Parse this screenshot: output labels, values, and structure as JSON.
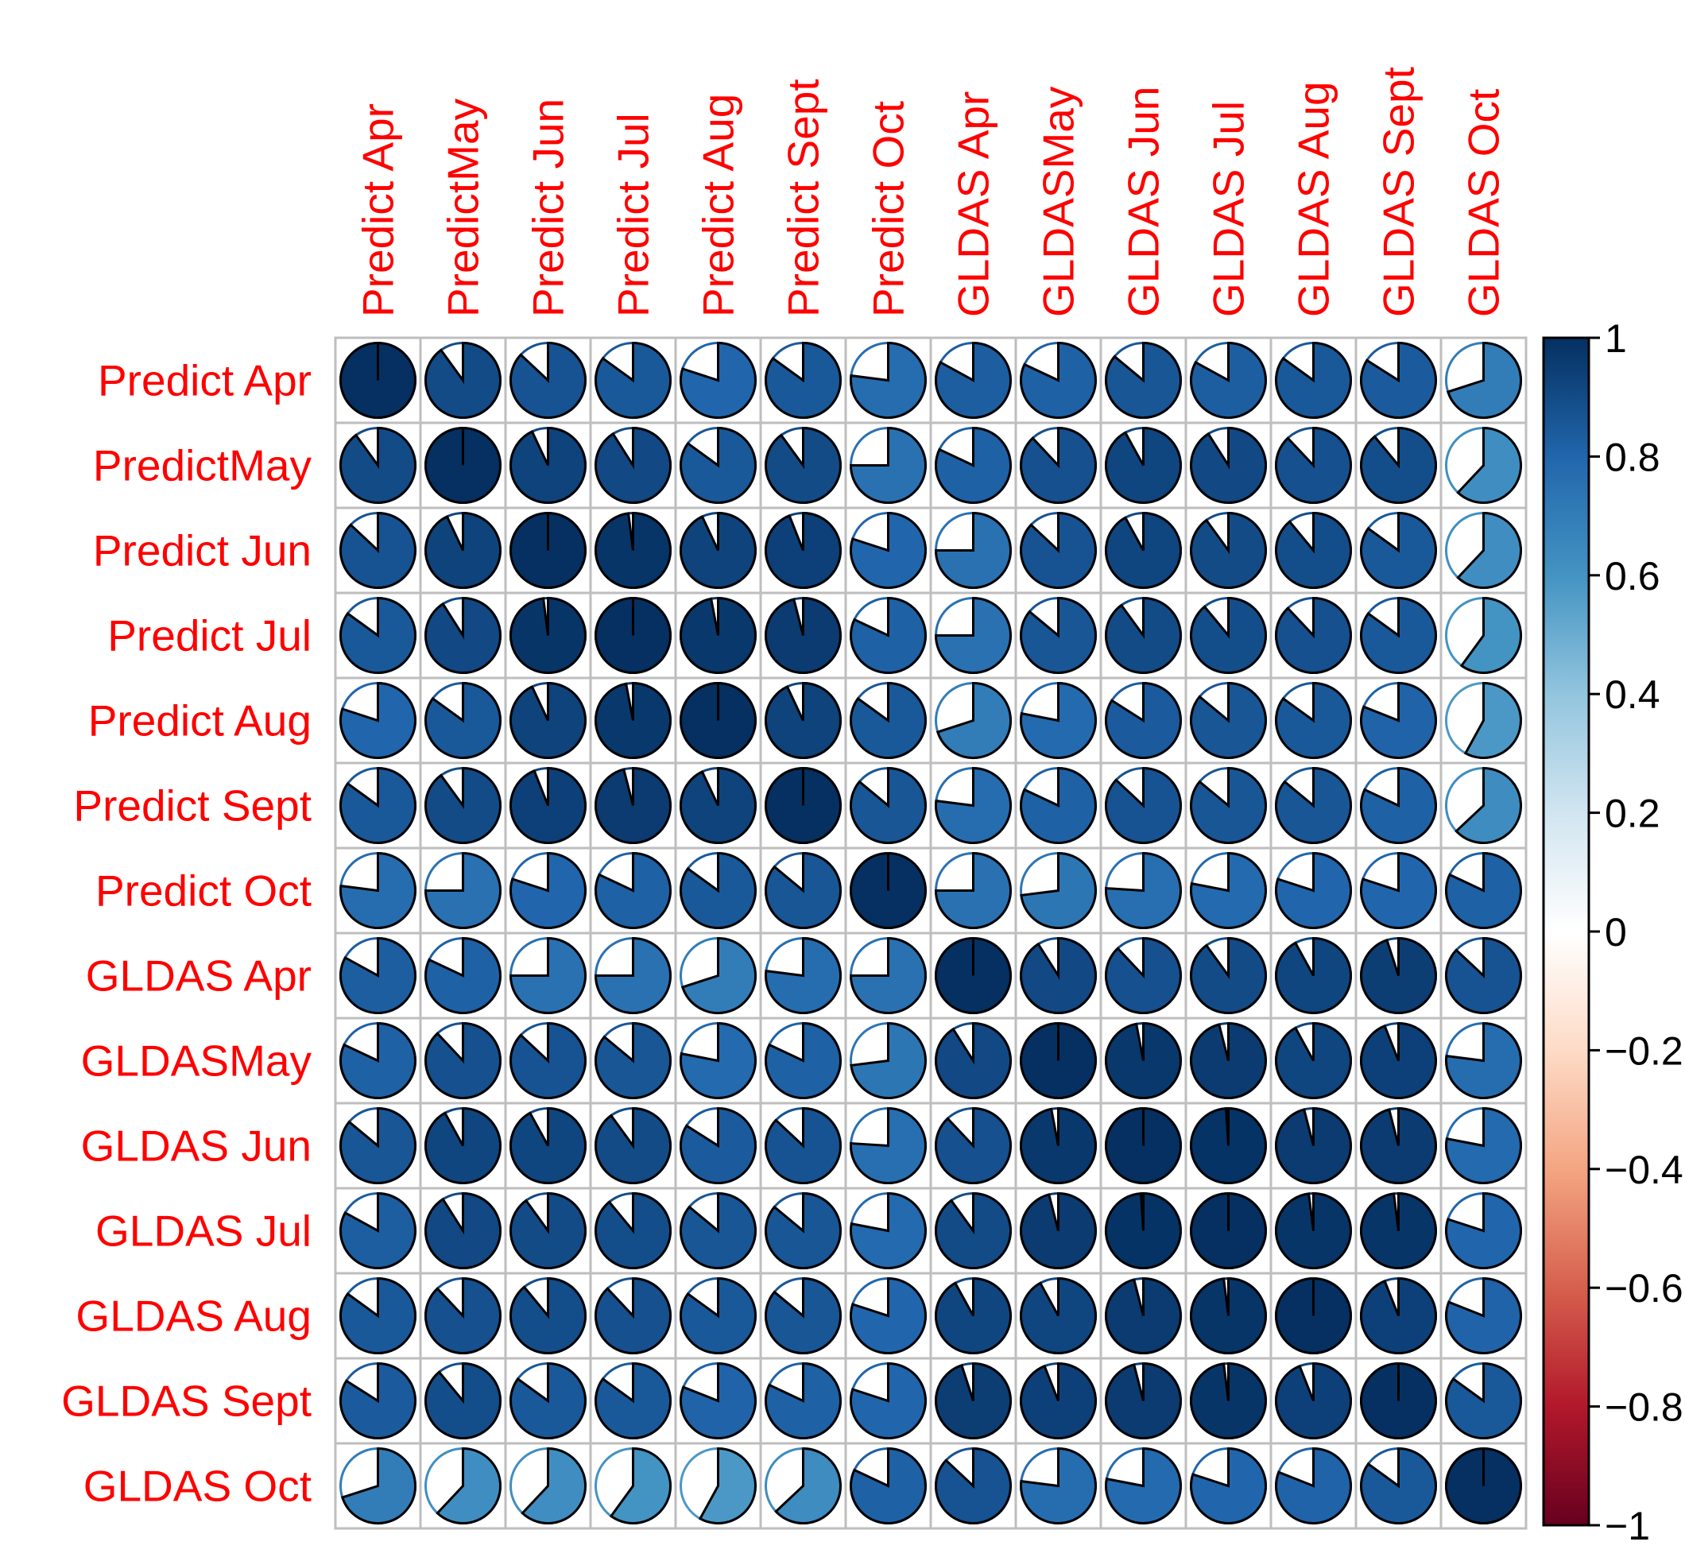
{
  "chart_data": {
    "type": "heatmap",
    "style": "pie",
    "title": "",
    "row_labels": [
      "Predict Apr",
      "PredictMay",
      "Predict Jun",
      "Predict Jul",
      "Predict Aug",
      "Predict Sept",
      "Predict Oct",
      "GLDAS Apr",
      "GLDASMay",
      "GLDAS Jun",
      "GLDAS Jul",
      "GLDAS Aug",
      "GLDAS Sept",
      "GLDAS Oct"
    ],
    "col_labels": [
      "Predict Apr",
      "PredictMay",
      "Predict Jun",
      "Predict Jul",
      "Predict Aug",
      "Predict Sept",
      "Predict Oct",
      "GLDAS Apr",
      "GLDASMay",
      "GLDAS Jun",
      "GLDAS Jul",
      "GLDAS Aug",
      "GLDAS Sept",
      "GLDAS Oct"
    ],
    "values": [
      [
        1.0,
        0.9,
        0.87,
        0.85,
        0.8,
        0.85,
        0.77,
        0.83,
        0.82,
        0.86,
        0.83,
        0.85,
        0.84,
        0.7
      ],
      [
        0.9,
        1.0,
        0.93,
        0.91,
        0.85,
        0.9,
        0.75,
        0.82,
        0.88,
        0.92,
        0.91,
        0.88,
        0.89,
        0.62
      ],
      [
        0.87,
        0.93,
        1.0,
        0.98,
        0.93,
        0.94,
        0.8,
        0.75,
        0.87,
        0.92,
        0.9,
        0.89,
        0.85,
        0.62
      ],
      [
        0.85,
        0.91,
        0.98,
        1.0,
        0.97,
        0.96,
        0.82,
        0.75,
        0.86,
        0.9,
        0.89,
        0.88,
        0.85,
        0.6
      ],
      [
        0.8,
        0.85,
        0.93,
        0.97,
        1.0,
        0.93,
        0.85,
        0.7,
        0.78,
        0.84,
        0.86,
        0.85,
        0.81,
        0.58
      ],
      [
        0.85,
        0.9,
        0.94,
        0.96,
        0.93,
        1.0,
        0.86,
        0.77,
        0.82,
        0.87,
        0.86,
        0.86,
        0.82,
        0.63
      ],
      [
        0.77,
        0.75,
        0.8,
        0.82,
        0.85,
        0.86,
        1.0,
        0.75,
        0.73,
        0.76,
        0.78,
        0.8,
        0.8,
        0.82
      ],
      [
        0.83,
        0.82,
        0.75,
        0.75,
        0.7,
        0.77,
        0.75,
        1.0,
        0.91,
        0.88,
        0.9,
        0.92,
        0.95,
        0.87
      ],
      [
        0.82,
        0.88,
        0.87,
        0.86,
        0.78,
        0.82,
        0.73,
        0.91,
        1.0,
        0.97,
        0.96,
        0.92,
        0.94,
        0.77
      ],
      [
        0.86,
        0.92,
        0.92,
        0.9,
        0.84,
        0.87,
        0.76,
        0.88,
        0.97,
        1.0,
        0.99,
        0.96,
        0.96,
        0.78
      ],
      [
        0.83,
        0.91,
        0.9,
        0.89,
        0.86,
        0.86,
        0.78,
        0.9,
        0.96,
        0.99,
        1.0,
        0.98,
        0.98,
        0.8
      ],
      [
        0.85,
        0.88,
        0.89,
        0.88,
        0.85,
        0.86,
        0.8,
        0.92,
        0.92,
        0.96,
        0.98,
        1.0,
        0.94,
        0.81
      ],
      [
        0.84,
        0.89,
        0.85,
        0.85,
        0.81,
        0.82,
        0.8,
        0.95,
        0.94,
        0.96,
        0.98,
        0.94,
        1.0,
        0.85
      ],
      [
        0.7,
        0.62,
        0.62,
        0.6,
        0.58,
        0.63,
        0.82,
        0.87,
        0.77,
        0.78,
        0.8,
        0.81,
        0.85,
        1.0
      ]
    ],
    "colorbar": {
      "ticks": [
        "1",
        "0.8",
        "0.6",
        "0.4",
        "0.2",
        "0",
        "−0.2",
        "−0.4",
        "−0.6",
        "−0.8",
        "−1"
      ],
      "range": [
        -1,
        1
      ],
      "colors_low_to_high": [
        "#67001F",
        "#B2182B",
        "#D6604D",
        "#F4A582",
        "#FDDBC7",
        "#FFFFFF",
        "#D1E5F0",
        "#92C5DE",
        "#4393C3",
        "#2166AC",
        "#053061"
      ]
    },
    "label_color": "#FF0000",
    "grid_color": "#BEBEBE"
  }
}
